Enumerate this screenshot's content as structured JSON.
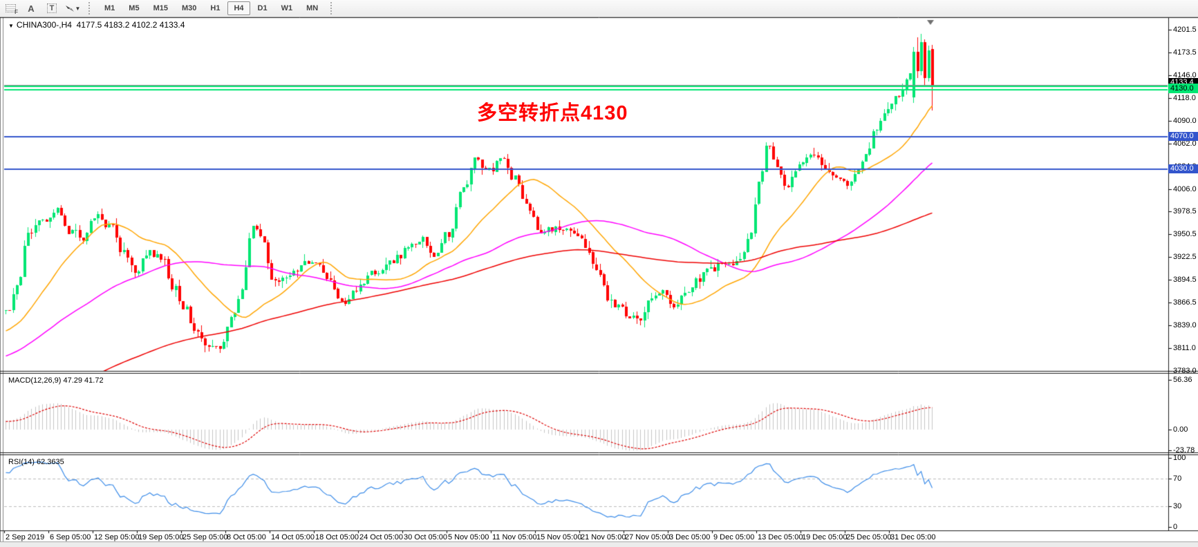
{
  "toolbar": {
    "left_icons": [
      {
        "name": "grid-f-icon",
        "label": "F"
      },
      {
        "name": "text-a-icon",
        "label": "A"
      },
      {
        "name": "text-box-icon",
        "label": "T"
      },
      {
        "name": "arrow-styles-icon",
        "label": ""
      }
    ],
    "dropdown_caret": "▼",
    "timeframes": [
      "M1",
      "M5",
      "M15",
      "M30",
      "H1",
      "H4",
      "D1",
      "W1",
      "MN"
    ],
    "active_timeframe": "H4"
  },
  "chart_header": {
    "dropdown": "▼",
    "symbol": "CHINA300-,H4",
    "ohlc": "4177.5 4183.2 4102.2 4133.4"
  },
  "annotation": {
    "text": "多空转折点4130",
    "color": "#ff0000"
  },
  "levels": {
    "current_price": "4133.4",
    "resistance": "4130.0",
    "support_1": "4070.0",
    "support_2": "4030.0"
  },
  "price_axis": [
    "4201.5",
    "4173.5",
    "4146.0",
    "4118.0",
    "4090.0",
    "4062.0",
    "4034.0",
    "4006.0",
    "3978.5",
    "3950.5",
    "3922.5",
    "3894.5",
    "3866.5",
    "3839.0",
    "3811.0",
    "3783.0"
  ],
  "macd_panel": {
    "title": "MACD(12,26,9) 47.29 41.72",
    "axis": [
      "56.36",
      "0.00",
      "-23.78"
    ]
  },
  "rsi_panel": {
    "title": "RSI(14) 62.3635",
    "axis": [
      "100",
      "70",
      "30",
      "0"
    ]
  },
  "date_axis": [
    "2 Sep 2019",
    "6 Sep 05:00",
    "12 Sep 05:00",
    "19 Sep 05:00",
    "25 Sep 05:00",
    "8 Oct 05:00",
    "14 Oct 05:00",
    "18 Oct 05:00",
    "24 Oct 05:00",
    "30 Oct 05:00",
    "5 Nov 05:00",
    "11 Nov 05:00",
    "15 Nov 05:00",
    "21 Nov 05:00",
    "27 Nov 05:00",
    "3 Dec 05:00",
    "9 Dec 05:00",
    "13 Dec 05:00",
    "19 Dec 05:00",
    "25 Dec 05:00",
    "31 Dec 05:00"
  ],
  "chart_data": {
    "type": "candlestick",
    "symbol": "CHINA300-",
    "timeframe": "H4",
    "current_bar": {
      "open": 4177.5,
      "high": 4183.2,
      "low": 4102.2,
      "close": 4133.4
    },
    "price_range": [
      3783.0,
      4201.5
    ],
    "grid_step": 28,
    "bars_per_label_interval": 12,
    "horizontal_lines": [
      {
        "price": 4133.4,
        "color": "#8a8a8a",
        "width": 1,
        "role": "bid"
      },
      {
        "price": 4132.0,
        "color": "#00e673",
        "width": 2,
        "role": "resistance-band"
      },
      {
        "price": 4128.0,
        "color": "#00e673",
        "width": 2,
        "role": "resistance-band"
      },
      {
        "price": 4070.0,
        "color": "#3355cc",
        "width": 2,
        "role": "support"
      },
      {
        "price": 4030.0,
        "color": "#3355cc",
        "width": 2,
        "role": "support"
      }
    ],
    "price_path": [
      [
        0,
        3855
      ],
      [
        0.25,
        3885
      ],
      [
        0.5,
        3948
      ],
      [
        0.85,
        3968
      ],
      [
        1.15,
        3980
      ],
      [
        1.45,
        3955
      ],
      [
        1.75,
        3945
      ],
      [
        2.05,
        3975
      ],
      [
        2.35,
        3960
      ],
      [
        2.65,
        3928
      ],
      [
        2.95,
        3906
      ],
      [
        3.2,
        3930
      ],
      [
        3.5,
        3922
      ],
      [
        3.8,
        3885
      ],
      [
        4.05,
        3860
      ],
      [
        4.3,
        3826
      ],
      [
        4.6,
        3810
      ],
      [
        4.85,
        3812
      ],
      [
        5.1,
        3845
      ],
      [
        5.35,
        3888
      ],
      [
        5.55,
        3962
      ],
      [
        5.75,
        3948
      ],
      [
        6.05,
        3895
      ],
      [
        6.35,
        3900
      ],
      [
        6.65,
        3912
      ],
      [
        6.95,
        3918
      ],
      [
        7.25,
        3898
      ],
      [
        7.55,
        3866
      ],
      [
        7.9,
        3880
      ],
      [
        8.3,
        3902
      ],
      [
        8.7,
        3914
      ],
      [
        9.05,
        3932
      ],
      [
        9.4,
        3946
      ],
      [
        9.65,
        3922
      ],
      [
        10,
        3952
      ],
      [
        10.3,
        4002
      ],
      [
        10.6,
        4044
      ],
      [
        10.9,
        4028
      ],
      [
        11.2,
        4042
      ],
      [
        11.5,
        4018
      ],
      [
        11.8,
        3985
      ],
      [
        12.1,
        3950
      ],
      [
        12.45,
        3962
      ],
      [
        12.75,
        3952
      ],
      [
        13.05,
        3940
      ],
      [
        13.35,
        3908
      ],
      [
        13.65,
        3868
      ],
      [
        13.95,
        3856
      ],
      [
        14.25,
        3846
      ],
      [
        14.55,
        3870
      ],
      [
        14.8,
        3882
      ],
      [
        15.05,
        3858
      ],
      [
        15.35,
        3874
      ],
      [
        15.65,
        3896
      ],
      [
        15.95,
        3908
      ],
      [
        16.25,
        3916
      ],
      [
        16.55,
        3914
      ],
      [
        16.8,
        3952
      ],
      [
        17.0,
        4012
      ],
      [
        17.2,
        4058
      ],
      [
        17.45,
        4032
      ],
      [
        17.65,
        4005
      ],
      [
        17.9,
        4038
      ],
      [
        18.15,
        4052
      ],
      [
        18.4,
        4038
      ],
      [
        18.65,
        4026
      ],
      [
        18.9,
        4012
      ],
      [
        19.15,
        4020
      ],
      [
        19.4,
        4048
      ],
      [
        19.65,
        4078
      ],
      [
        19.9,
        4100
      ],
      [
        20.15,
        4118
      ],
      [
        20.4,
        4150
      ],
      [
        20.6,
        4172
      ],
      [
        20.75,
        4180
      ],
      [
        20.92,
        4150
      ]
    ],
    "pre_path": [
      [
        -13.3,
        3655
      ],
      [
        -10,
        3640
      ],
      [
        -8,
        3690
      ],
      [
        -6,
        3730
      ],
      [
        -4,
        3772
      ],
      [
        -2,
        3808
      ],
      [
        -0.8,
        3832
      ],
      [
        0,
        3855
      ]
    ],
    "final_bars": [
      [
        4118,
        4180,
        4112,
        4174
      ],
      [
        4174,
        4192,
        4142,
        4150
      ],
      [
        4150,
        4196,
        4146,
        4186
      ],
      [
        4186,
        4190,
        4134,
        4142
      ],
      [
        4142,
        4182,
        4138,
        4176
      ],
      [
        4177.5,
        4183.2,
        4102.2,
        4133.4
      ]
    ],
    "moving_averages": [
      {
        "name": "fast",
        "period": 22,
        "color": "#ffa500"
      },
      {
        "name": "medium",
        "period": 60,
        "color": "#ff00ff"
      },
      {
        "name": "slow",
        "period": 150,
        "color": "#ee0000"
      }
    ],
    "macd": {
      "fast": 12,
      "slow": 26,
      "signal": 9,
      "value": 47.29,
      "signal_value": 41.72,
      "range": [
        -23.78,
        56.36
      ]
    },
    "rsi": {
      "period": 14,
      "value": 62.3635,
      "range": [
        0,
        100
      ],
      "overbought": 70,
      "oversold": 30
    },
    "colors": {
      "bull": "#00e673",
      "bear": "#ff0000",
      "macd_hist": "#c4c4c4",
      "macd_signal": "#dd0000",
      "rsi_line": "#3c8ce8",
      "rsi_levels": "#bbbbbb",
      "frame": "#1a1a1a"
    }
  }
}
